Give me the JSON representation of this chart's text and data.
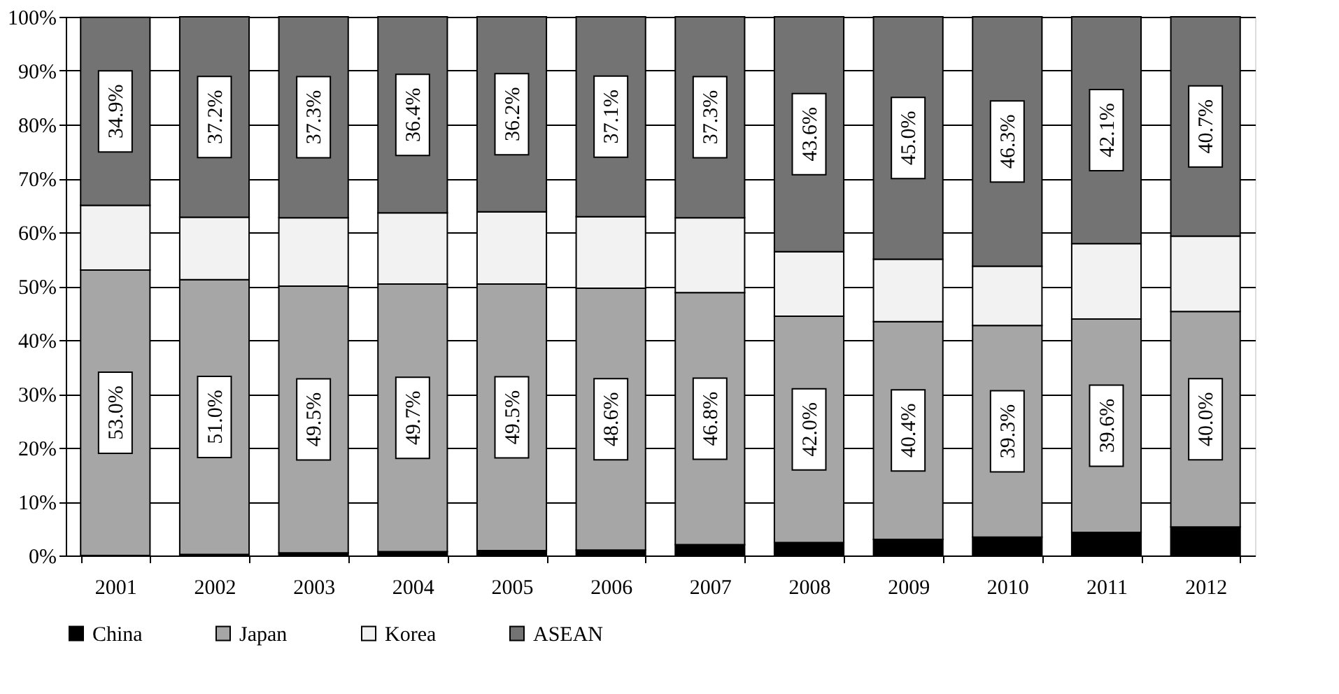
{
  "chart_data": {
    "type": "bar",
    "stacked": true,
    "categories": [
      "2001",
      "2002",
      "2003",
      "2004",
      "2005",
      "2006",
      "2007",
      "2008",
      "2009",
      "2010",
      "2011",
      "2012"
    ],
    "series": [
      {
        "name": "China",
        "color": "#000000",
        "values": [
          null,
          0.2,
          0.5,
          0.7,
          0.9,
          1.0,
          2.0,
          2.4,
          3.0,
          3.4,
          4.3,
          5.3
        ]
      },
      {
        "name": "Japan",
        "color": "#a6a6a6",
        "values": [
          53.0,
          51.0,
          49.5,
          49.7,
          49.5,
          48.6,
          46.8,
          42.0,
          40.4,
          39.3,
          39.6,
          40.0
        ],
        "value_labels": [
          "53.0%",
          "51.0%",
          "49.5%",
          "49.7%",
          "49.5%",
          "48.6%",
          "46.8%",
          "42.0%",
          "40.4%",
          "39.3%",
          "39.6%",
          "40.0%"
        ]
      },
      {
        "name": "Korea",
        "color": "#f2f2f2",
        "values": [
          12.0,
          11.6,
          12.7,
          13.2,
          13.4,
          13.3,
          13.9,
          12.0,
          11.6,
          11.0,
          14.0,
          14.0
        ]
      },
      {
        "name": "ASEAN",
        "color": "#737373",
        "values": [
          34.9,
          37.2,
          37.3,
          36.4,
          36.2,
          37.1,
          37.3,
          43.6,
          45.0,
          46.3,
          42.1,
          40.7
        ],
        "value_labels": [
          "34.9%",
          "37.2%",
          "37.3%",
          "36.4%",
          "36.2%",
          "37.1%",
          "37.3%",
          "43.6%",
          "45.0%",
          "46.3%",
          "42.1%",
          "40.7%"
        ]
      }
    ],
    "ylim": [
      0,
      100
    ],
    "yticks": [
      {
        "value": 0,
        "label": "0%"
      },
      {
        "value": 10,
        "label": "10%"
      },
      {
        "value": 20,
        "label": "20%"
      },
      {
        "value": 30,
        "label": "30%"
      },
      {
        "value": 40,
        "label": "40%"
      },
      {
        "value": 50,
        "label": "50%"
      },
      {
        "value": 60,
        "label": "60%"
      },
      {
        "value": 70,
        "label": "70%"
      },
      {
        "value": 80,
        "label": "80%"
      },
      {
        "value": 90,
        "label": "90%"
      },
      {
        "value": 100,
        "label": "100%"
      }
    ],
    "grid": "y",
    "legend": "bottom"
  }
}
